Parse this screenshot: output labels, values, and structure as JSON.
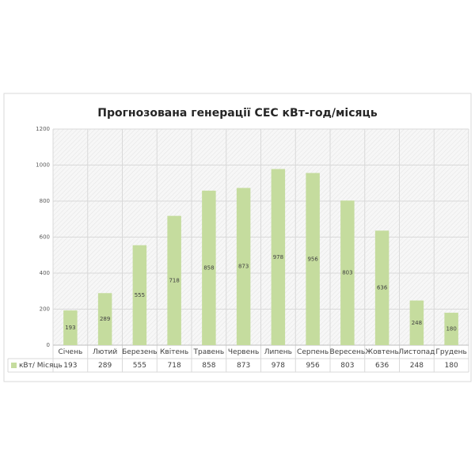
{
  "chart_data": {
    "type": "bar",
    "title": "Прогнозована генерації СЕС кВт-год/місяць",
    "categories": [
      "Січень",
      "Лютий",
      "Березень",
      "Квітень",
      "Травень",
      "Червень",
      "Липень",
      "Серпень",
      "Вересень",
      "Жовтень",
      "Листопад",
      "Грудень"
    ],
    "series": [
      {
        "name": "кВт/ Місяць",
        "color": "#c5dc9e",
        "values": [
          193,
          289,
          555,
          718,
          858,
          873,
          978,
          956,
          803,
          636,
          248,
          180
        ]
      }
    ],
    "ylim": [
      0,
      1200
    ],
    "yticks": [
      0,
      200,
      400,
      600,
      800,
      1000,
      1200
    ],
    "grid": true,
    "data_table": true
  }
}
